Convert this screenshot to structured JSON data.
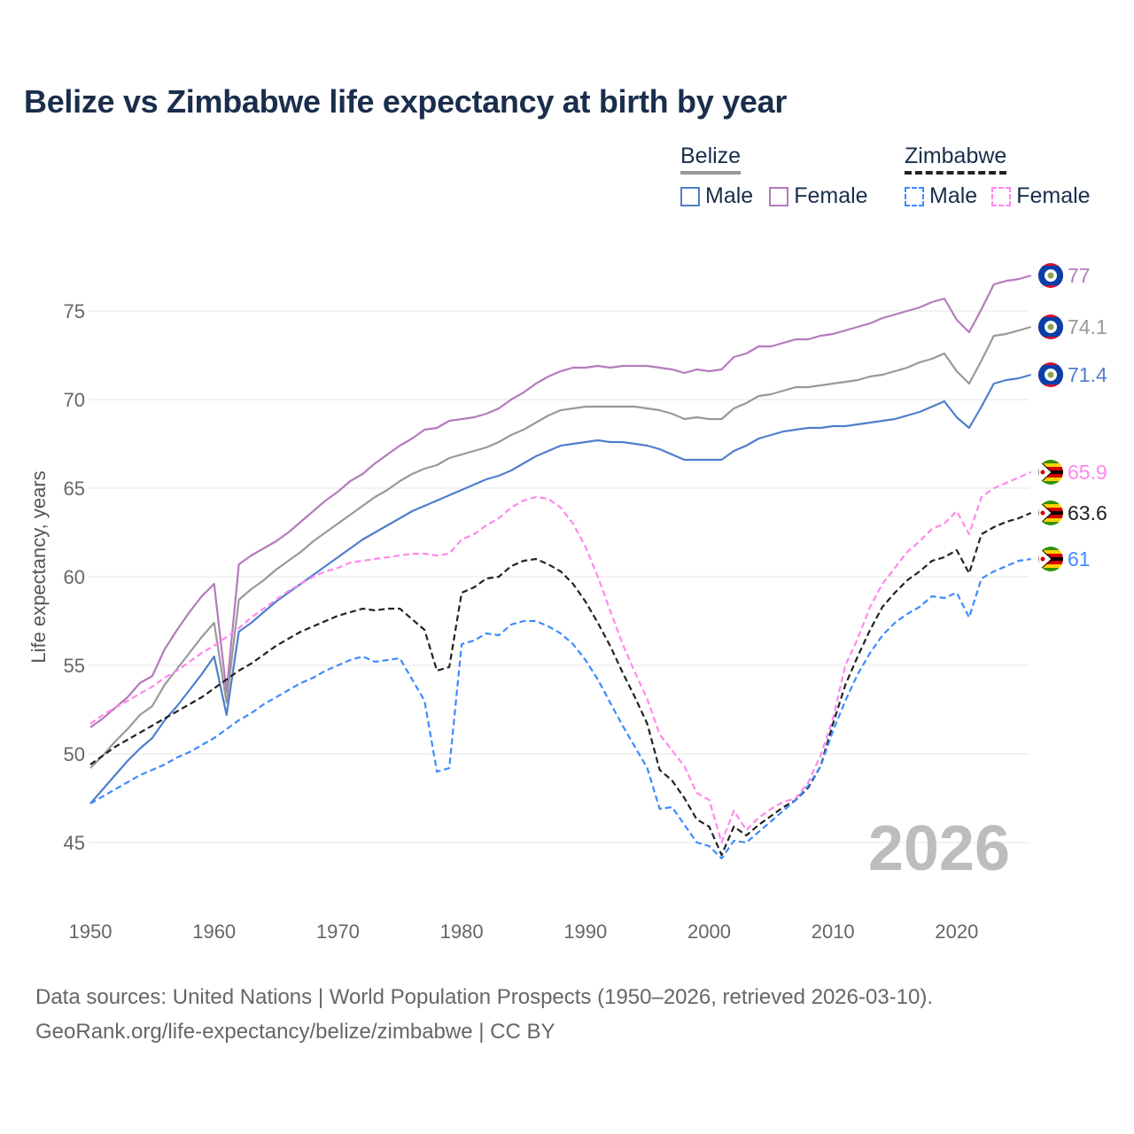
{
  "title": "Belize vs Zimbabwe life expectancy at birth by year",
  "legend": {
    "groups": [
      {
        "name": "Belize",
        "items": [
          "Male",
          "Female"
        ]
      },
      {
        "name": "Zimbabwe",
        "items": [
          "Male",
          "Female"
        ]
      }
    ]
  },
  "footer": {
    "line1": "Data sources: United Nations | World Population Prospects (1950–2026, retrieved 2026-03-10).",
    "line2": "GeoRank.org/life-expectancy/belize/zimbabwe | CC BY"
  },
  "chart_data": {
    "type": "line",
    "title": "Belize vs Zimbabwe life expectancy at birth by year",
    "xlabel": "",
    "ylabel": "Life expectancy, years",
    "xlim": [
      1950,
      2026
    ],
    "ylim": [
      42.5,
      79
    ],
    "xticks": [
      1950,
      1960,
      1970,
      1980,
      1990,
      2000,
      2010,
      2020
    ],
    "yticks": [
      45,
      50,
      55,
      60,
      65,
      70,
      75
    ],
    "grid": true,
    "watermark": "2026",
    "x_start": 1950,
    "series": [
      {
        "name": "Belize Female",
        "country": "Belize",
        "color": "#b57bbd",
        "dashed": false,
        "end_label": "77",
        "values": [
          51.5,
          52.0,
          52.6,
          53.2,
          54.0,
          54.4,
          55.9,
          57.0,
          58.0,
          58.9,
          59.6,
          53.5,
          60.7,
          61.2,
          61.6,
          62.0,
          62.5,
          63.1,
          63.7,
          64.3,
          64.8,
          65.4,
          65.8,
          66.4,
          66.9,
          67.4,
          67.8,
          68.3,
          68.4,
          68.8,
          68.9,
          69.0,
          69.2,
          69.5,
          70.0,
          70.4,
          70.9,
          71.3,
          71.6,
          71.8,
          71.8,
          71.9,
          71.8,
          71.9,
          71.9,
          71.9,
          71.8,
          71.7,
          71.5,
          71.7,
          71.6,
          71.7,
          72.4,
          72.6,
          73.0,
          73.0,
          73.2,
          73.4,
          73.4,
          73.6,
          73.7,
          73.9,
          74.1,
          74.3,
          74.6,
          74.8,
          75.0,
          75.2,
          75.5,
          75.7,
          74.5,
          73.8,
          75.1,
          76.5,
          76.7,
          76.8,
          77.0
        ]
      },
      {
        "name": "Belize",
        "country": "Belize",
        "color": "#999999",
        "dashed": false,
        "end_label": "74.1",
        "values": [
          49.2,
          49.9,
          50.7,
          51.4,
          52.2,
          52.7,
          53.9,
          54.8,
          55.7,
          56.6,
          57.4,
          52.9,
          58.7,
          59.3,
          59.8,
          60.4,
          60.9,
          61.4,
          62.0,
          62.5,
          63.0,
          63.5,
          64.0,
          64.5,
          64.9,
          65.4,
          65.8,
          66.1,
          66.3,
          66.7,
          66.9,
          67.1,
          67.3,
          67.6,
          68.0,
          68.3,
          68.7,
          69.1,
          69.4,
          69.5,
          69.6,
          69.6,
          69.6,
          69.6,
          69.6,
          69.5,
          69.4,
          69.2,
          68.9,
          69.0,
          68.9,
          68.9,
          69.5,
          69.8,
          70.2,
          70.3,
          70.5,
          70.7,
          70.7,
          70.8,
          70.9,
          71.0,
          71.1,
          71.3,
          71.4,
          71.6,
          71.8,
          72.1,
          72.3,
          72.6,
          71.6,
          70.9,
          72.2,
          73.6,
          73.7,
          73.9,
          74.1
        ]
      },
      {
        "name": "Belize Male",
        "country": "Belize",
        "color": "#4f7fca",
        "dashed": false,
        "end_label": "71.4",
        "values": [
          47.2,
          48.0,
          48.8,
          49.6,
          50.3,
          50.9,
          51.9,
          52.7,
          53.6,
          54.5,
          55.5,
          52.2,
          56.9,
          57.4,
          58.0,
          58.6,
          59.1,
          59.6,
          60.1,
          60.6,
          61.1,
          61.6,
          62.1,
          62.5,
          62.9,
          63.3,
          63.7,
          64.0,
          64.3,
          64.6,
          64.9,
          65.2,
          65.5,
          65.7,
          66.0,
          66.4,
          66.8,
          67.1,
          67.4,
          67.5,
          67.6,
          67.7,
          67.6,
          67.6,
          67.5,
          67.4,
          67.2,
          66.9,
          66.6,
          66.6,
          66.6,
          66.6,
          67.1,
          67.4,
          67.8,
          68.0,
          68.2,
          68.3,
          68.4,
          68.4,
          68.5,
          68.5,
          68.6,
          68.7,
          68.8,
          68.9,
          69.1,
          69.3,
          69.6,
          69.9,
          69.0,
          68.4,
          69.6,
          70.9,
          71.1,
          71.2,
          71.4
        ]
      },
      {
        "name": "Zimbabwe Female",
        "country": "Zimbabwe",
        "color": "#ff88ee",
        "dashed": true,
        "end_label": "65.9",
        "values": [
          51.7,
          52.2,
          52.6,
          53.0,
          53.4,
          53.8,
          54.3,
          54.7,
          55.2,
          55.7,
          56.1,
          56.6,
          57.1,
          57.7,
          58.2,
          58.7,
          59.2,
          59.6,
          60.0,
          60.3,
          60.5,
          60.8,
          60.9,
          61.0,
          61.1,
          61.2,
          61.3,
          61.3,
          61.2,
          61.3,
          62.1,
          62.4,
          62.9,
          63.3,
          63.9,
          64.3,
          64.5,
          64.4,
          63.9,
          63.0,
          61.7,
          60.0,
          58.1,
          56.2,
          54.6,
          53.1,
          51.1,
          50.2,
          49.3,
          47.8,
          47.4,
          45.0,
          46.8,
          45.7,
          46.4,
          46.9,
          47.3,
          47.5,
          48.4,
          49.9,
          52.0,
          55.0,
          56.5,
          58.3,
          59.6,
          60.5,
          61.4,
          62.0,
          62.7,
          63.0,
          63.7,
          62.4,
          64.5,
          65.0,
          65.3,
          65.6,
          65.9
        ]
      },
      {
        "name": "Zimbabwe",
        "country": "Zimbabwe",
        "color": "#222222",
        "dashed": true,
        "end_label": "63.6",
        "values": [
          49.4,
          49.9,
          50.4,
          50.8,
          51.2,
          51.6,
          52.0,
          52.4,
          52.8,
          53.2,
          53.7,
          54.2,
          54.7,
          55.1,
          55.6,
          56.1,
          56.5,
          56.9,
          57.2,
          57.5,
          57.8,
          58.0,
          58.2,
          58.1,
          58.2,
          58.2,
          57.6,
          57.0,
          54.7,
          54.9,
          59.1,
          59.4,
          59.9,
          60.0,
          60.6,
          60.9,
          61.0,
          60.7,
          60.3,
          59.6,
          58.6,
          57.4,
          56.1,
          54.6,
          53.2,
          51.7,
          49.1,
          48.5,
          47.5,
          46.3,
          45.9,
          44.3,
          45.9,
          45.4,
          46.0,
          46.5,
          47.0,
          47.4,
          48.1,
          49.3,
          51.7,
          53.9,
          55.5,
          57.0,
          58.3,
          59.1,
          59.8,
          60.3,
          60.9,
          61.1,
          61.5,
          60.2,
          62.4,
          62.8,
          63.1,
          63.3,
          63.6
        ]
      },
      {
        "name": "Zimbabwe Male",
        "country": "Zimbabwe",
        "color": "#3d8bff",
        "dashed": true,
        "end_label": "61",
        "values": [
          47.2,
          47.6,
          48.0,
          48.4,
          48.8,
          49.1,
          49.4,
          49.8,
          50.1,
          50.5,
          50.9,
          51.4,
          51.9,
          52.3,
          52.8,
          53.2,
          53.6,
          54.0,
          54.3,
          54.7,
          55.0,
          55.3,
          55.5,
          55.2,
          55.3,
          55.4,
          54.2,
          53.0,
          49.0,
          49.2,
          56.2,
          56.4,
          56.8,
          56.7,
          57.3,
          57.5,
          57.5,
          57.2,
          56.8,
          56.2,
          55.3,
          54.2,
          52.9,
          51.6,
          50.4,
          49.2,
          46.9,
          47.0,
          46.0,
          45.0,
          44.8,
          44.1,
          45.1,
          45.0,
          45.6,
          46.2,
          46.8,
          47.4,
          48.2,
          49.3,
          51.3,
          53.0,
          54.5,
          55.7,
          56.7,
          57.4,
          57.9,
          58.3,
          58.9,
          58.8,
          59.1,
          57.7,
          59.9,
          60.3,
          60.6,
          60.9,
          61.0
        ]
      }
    ]
  }
}
